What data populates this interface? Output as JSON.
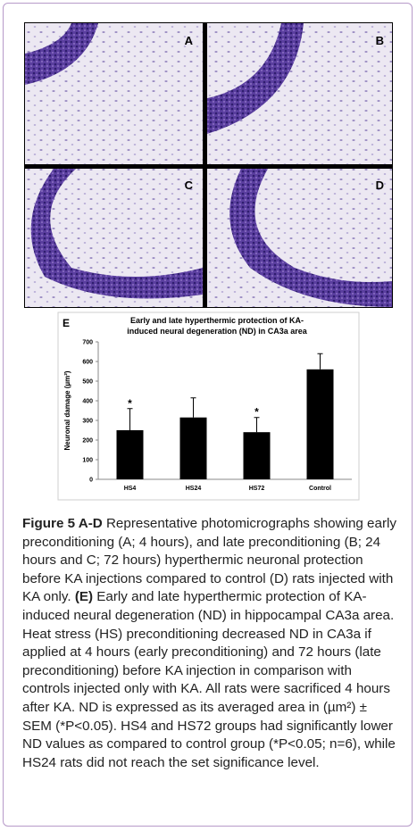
{
  "panel_labels": [
    "A",
    "B",
    "C",
    "D"
  ],
  "chart_data": {
    "type": "bar",
    "panel_label": "E",
    "title": [
      "Early and late hyperthermic protection of KA-",
      "induced neural degeneration (ND) in CA3a area"
    ],
    "y_label": "Neuronal damage (µm²)",
    "categories": [
      "HS4",
      "HS24",
      "HS72",
      "Control"
    ],
    "values": [
      250,
      315,
      240,
      560
    ],
    "errors": [
      110,
      100,
      75,
      80
    ],
    "significance": [
      "*",
      null,
      "*",
      null
    ],
    "color": "#000000",
    "ylim": [
      0,
      700
    ],
    "yticks": [
      0,
      100,
      200,
      300,
      400,
      500,
      600,
      700
    ],
    "grid": false
  },
  "caption": {
    "label": "Figure 5 A-D",
    "text1": " Representative photomicrographs showing early preconditioning (A; 4 hours), and late preconditioning (B; 24 hours and C; 72 hours) hyperthermic neuronal protection before KA injections compared to control (D) rats injected with KA only. ",
    "label_e": "(E)",
    "text2": " Early and late hyperthermic protection of KA-induced neural degeneration (ND) in hippocampal CA3a area. Heat stress (HS) preconditioning decreased ND in CA3a if applied at 4 hours (early preconditioning) and 72 hours (late preconditioning) before KA injection in comparison with controls injected only with KA. All rats were sacrificed 4 hours after KA. ND is expressed as its averaged area in (µm²) ± SEM (*P<0.05). HS4 and HS72 groups had significantly lower ND values as compared to control group (*P<0.05; n=6), while HS24 rats did not reach the set significance level."
  }
}
